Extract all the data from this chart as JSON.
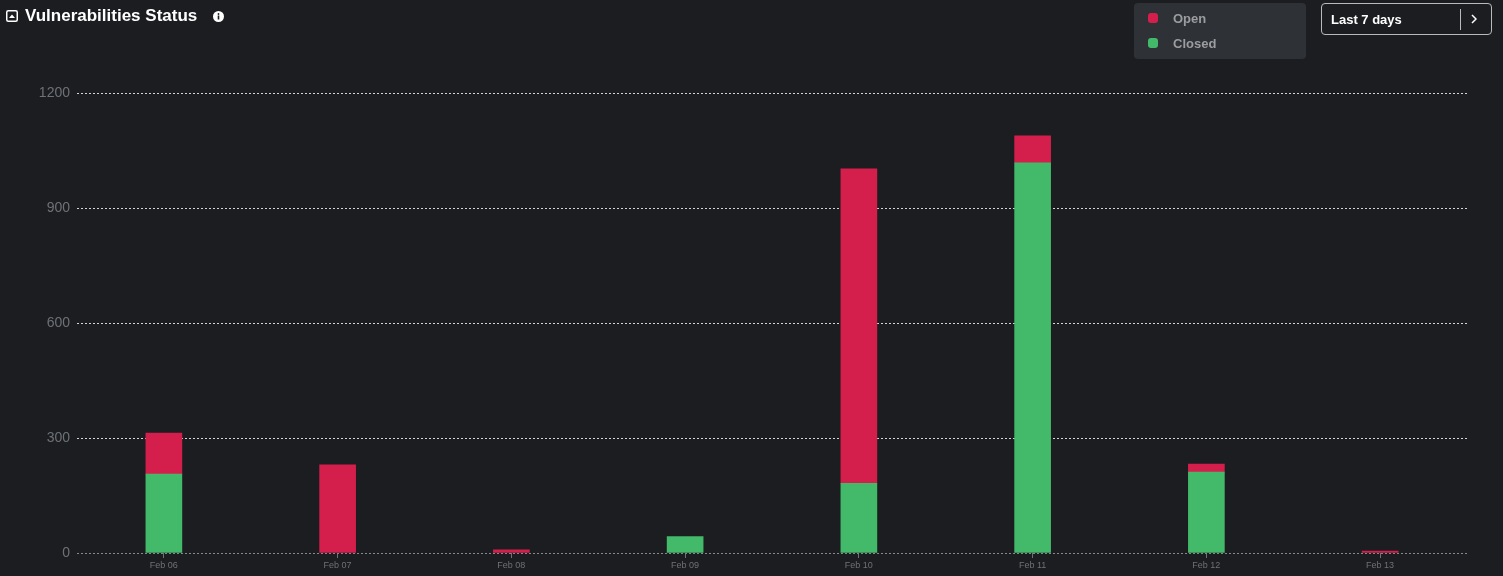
{
  "chart_data": {
    "type": "bar",
    "title": "Vulnerabilities Status",
    "categories": [
      "Feb 06",
      "Feb 07",
      "Feb 08",
      "Feb 09",
      "Feb 10",
      "Feb 11",
      "Feb 12",
      "Feb 13"
    ],
    "series": [
      {
        "name": "Closed",
        "color": "#43b96a",
        "values": [
          206,
          null,
          null,
          43,
          182,
          1018,
          211,
          null
        ]
      },
      {
        "name": "Open",
        "color": "#d41f4c",
        "values": [
          107,
          230,
          8,
          null,
          820,
          70,
          21,
          5
        ]
      }
    ],
    "stacked": true,
    "ylim": [
      0,
      1200
    ],
    "yticks": [
      0,
      300,
      600,
      900,
      1200
    ],
    "grid": "y",
    "legend": "top right",
    "annotations": [
      "Last 7 days"
    ]
  }
}
